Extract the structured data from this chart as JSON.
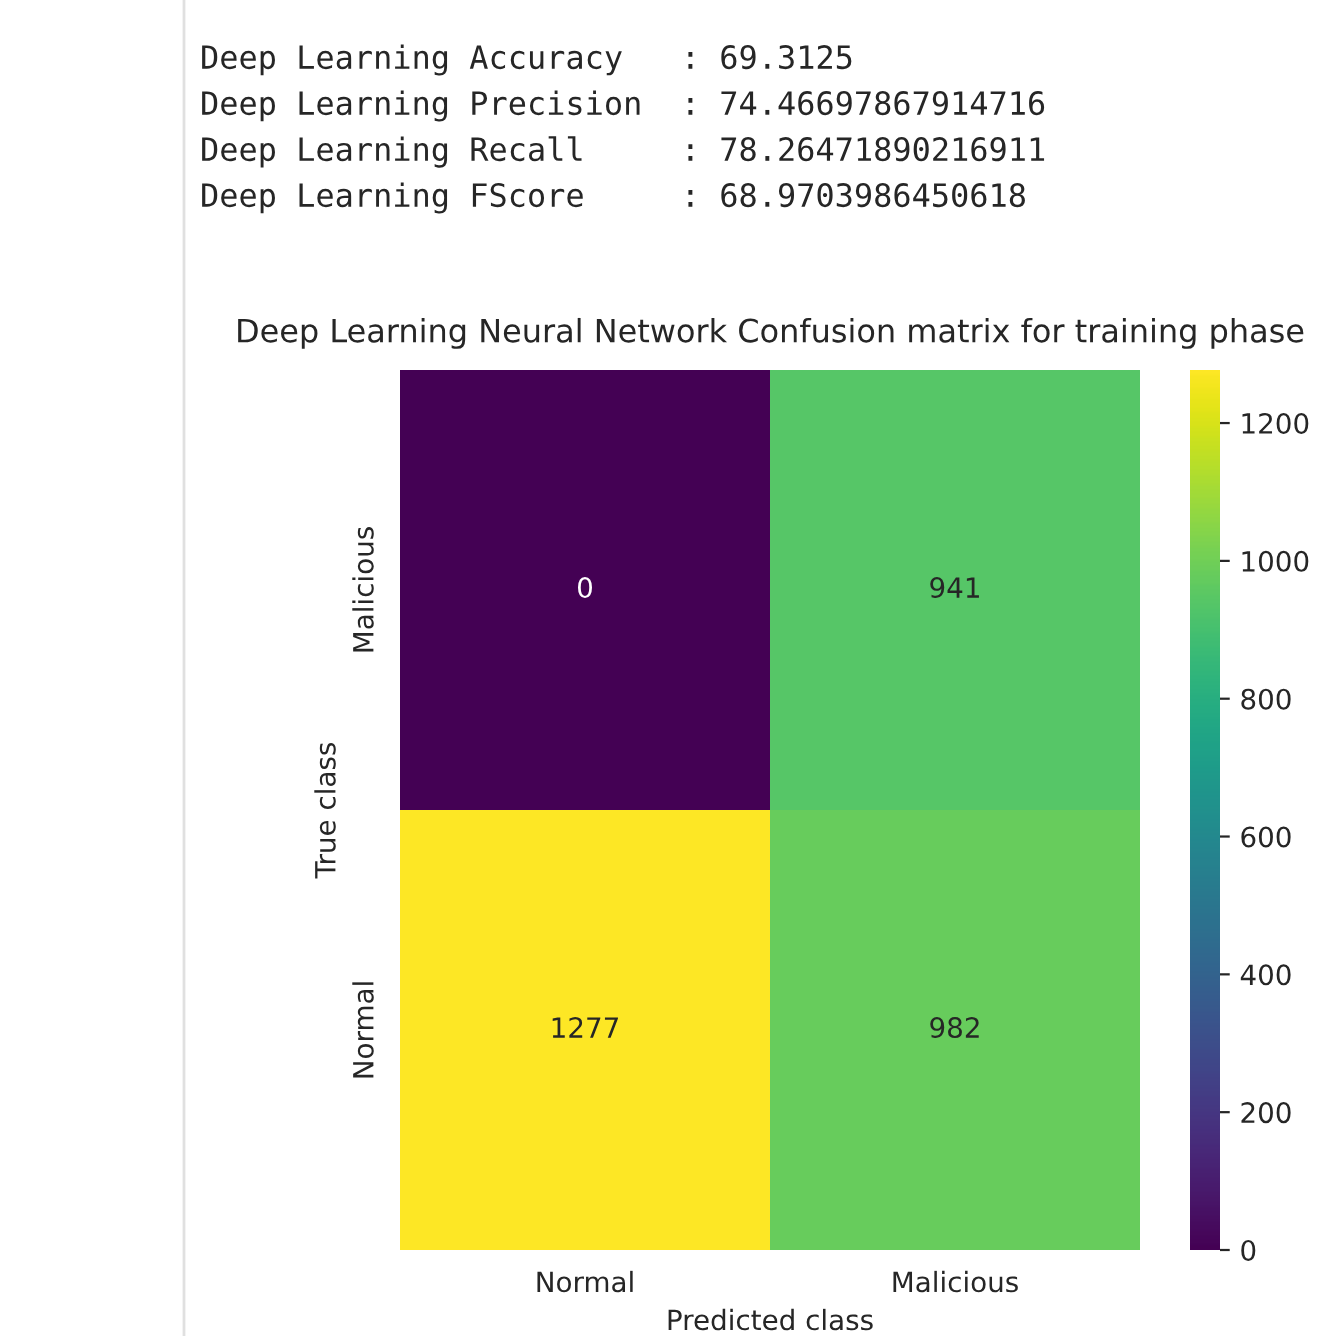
{
  "chart_data": {
    "type": "heatmap",
    "title": "Deep Learning Neural Network Confusion matrix for training phase",
    "xlabel": "Predicted class",
    "ylabel": "True class",
    "categories": [
      "Normal",
      "Malicious"
    ],
    "y_categories": [
      "Malicious",
      "Normal"
    ],
    "cells": [
      [
        0,
        941
      ],
      [
        1277,
        982
      ]
    ],
    "data_labels": true,
    "clim": [
      0,
      1277
    ],
    "cticks": [
      0,
      200,
      400,
      600,
      800,
      1000,
      1200
    ],
    "annotations": [
      "Deep Learning Accuracy   : 69.3125",
      "Deep Learning Precision  : 74.46697867914716",
      "Deep Learning Recall     : 78.26471890216911",
      "Deep Learning FScore     : 68.9703986450618"
    ]
  }
}
